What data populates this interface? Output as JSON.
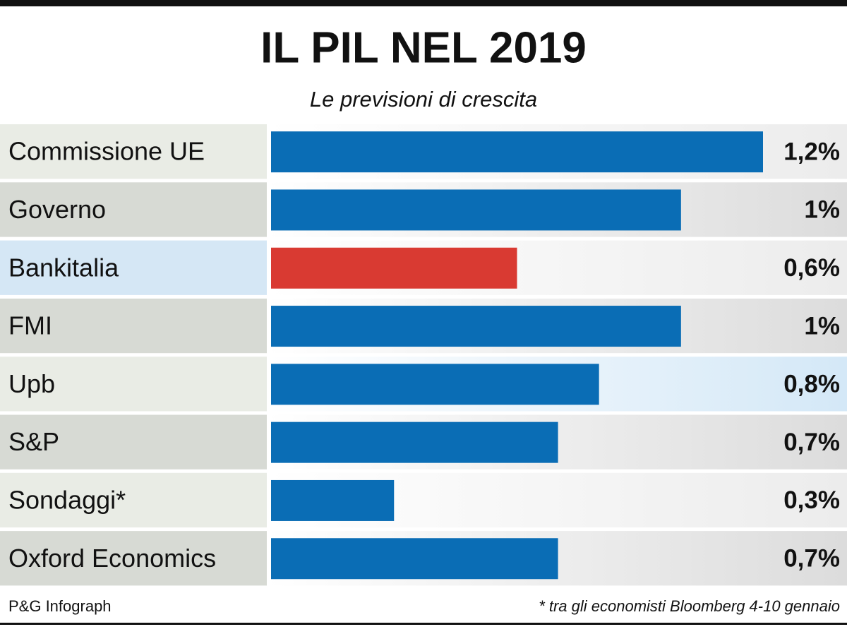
{
  "chart_data": {
    "type": "bar",
    "orientation": "horizontal",
    "title": "IL PIL NEL 2019",
    "subtitle": "Le previsioni di crescita",
    "categories": [
      "Commissione UE",
      "Governo",
      "Bankitalia",
      "FMI",
      "Upb",
      "S&P",
      "Sondaggi*",
      "Oxford Economics"
    ],
    "values": [
      1.2,
      1,
      0.6,
      1,
      0.8,
      0.7,
      0.3,
      0.7
    ],
    "value_labels": [
      "1,2%",
      "1%",
      "0,6%",
      "1%",
      "0,8%",
      "0,7%",
      "0,3%",
      "0,7%"
    ],
    "colors": [
      "#0a6db5",
      "#0a6db5",
      "#d93a32",
      "#0a6db5",
      "#0a6db5",
      "#0a6db5",
      "#0a6db5",
      "#0a6db5"
    ],
    "xlim": [
      0,
      1.2
    ],
    "source": "P&G Infograph",
    "footnote": "* tra gli economisti Bloomberg 4-10 gennaio"
  }
}
